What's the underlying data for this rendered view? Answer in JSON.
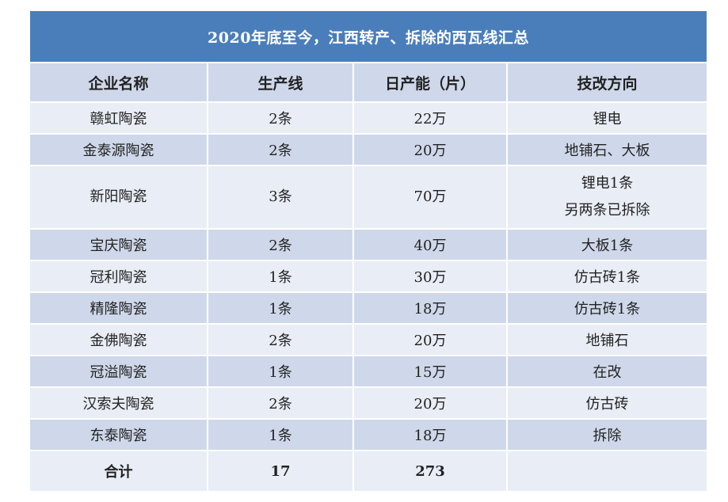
{
  "title": "2020年底至今，江西转产、拆除的西瓦线汇总",
  "headers": [
    "企业名称",
    "生产线",
    "日产能（片）",
    "技改方向"
  ],
  "rows": [
    [
      "赣虹陶瓷",
      "2条",
      "22万",
      "锂电"
    ],
    [
      "金泰源陶瓷",
      "2条",
      "20万",
      "地铺石、大板"
    ],
    [
      "新阳陶瓷",
      "3条",
      "70万",
      "锂电1条\n另两条已拆除"
    ],
    [
      "宝庆陶瓷",
      "2条",
      "40万",
      "大板1条"
    ],
    [
      "冠利陶瓷",
      "1条",
      "30万",
      "仿古砖1条"
    ],
    [
      "精隆陶瓷",
      "1条",
      "18万",
      "仿古砖1条"
    ],
    [
      "金佛陶瓷",
      "2条",
      "20万",
      "地铺石"
    ],
    [
      "冠溢陶瓷",
      "1条",
      "15万",
      "在改"
    ],
    [
      "汉索夫陶瓷",
      "2条",
      "20万",
      "仿古砖"
    ],
    [
      "东泰陶瓷",
      "1条",
      "18万",
      "拆除"
    ]
  ],
  "total": [
    "合计",
    "17",
    "273",
    ""
  ],
  "colors": {
    "title_bg": "#4a7ebb",
    "header_bg": "#cfd8ea",
    "row_light": "#e9edf5",
    "row_dark": "#cfd8ea"
  }
}
